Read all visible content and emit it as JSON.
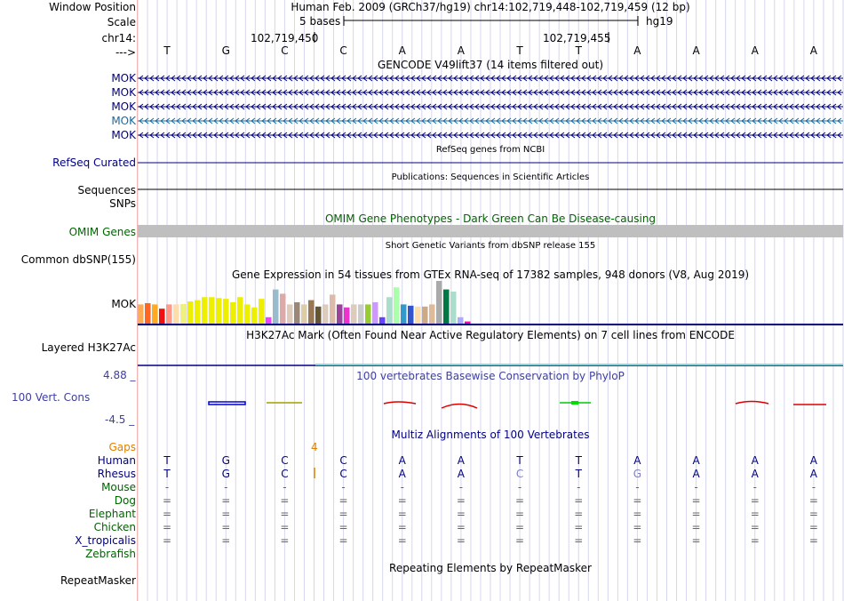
{
  "colors": {
    "navy": "#000080",
    "blue": "#000099",
    "teal": "#19699e",
    "green": "#006400",
    "orange": "#e08000",
    "purple": "#3f3f9f",
    "gray": "#bfbfbf",
    "grid": "#d6d6ee"
  },
  "ruler": {
    "window_position_label": "Window Position",
    "window_position_text": "Human Feb. 2009 (GRCh37/hg19)    chr14:102,719,448-102,719,459 (12 bp)",
    "scale_label": "Scale",
    "scale_text": "5 bases",
    "assembly": "hg19",
    "chrom_label": "chr14:",
    "tick_left": "102,719,450",
    "tick_right": "102,719,455",
    "strand_label": "--->",
    "bases": [
      "T",
      "G",
      "C",
      "C",
      "A",
      "A",
      "T",
      "T",
      "A",
      "A",
      "A",
      "A"
    ]
  },
  "gencode": {
    "title": "GENCODE V49lift37 (14 items filtered out)",
    "items": [
      {
        "name": "MOK",
        "color": "#000080"
      },
      {
        "name": "MOK",
        "color": "#000080"
      },
      {
        "name": "MOK",
        "color": "#000080"
      },
      {
        "name": "MOK",
        "color": "#19699e"
      },
      {
        "name": "MOK",
        "color": "#000080"
      }
    ]
  },
  "refseq": {
    "title": "RefSeq genes from NCBI",
    "label": "RefSeq Curated"
  },
  "publications": {
    "title": "Publications: Sequences in Scientific Articles",
    "label_sequences": "Sequences",
    "label_snps": "SNPs"
  },
  "omim": {
    "title": "OMIM Gene Phenotypes - Dark Green Can Be Disease-causing",
    "label": "OMIM Genes"
  },
  "dbsnp": {
    "title": "Short Genetic Variants from dbSNP release 155",
    "label": "Common dbSNP(155)"
  },
  "gtex": {
    "title": "Gene Expression in 54 tissues from GTEx RNA-seq of 17382 samples, 948 donors (V8, Aug 2019)",
    "label": "MOK",
    "bars": [
      {
        "v": 0.45,
        "c": "#ffaa55"
      },
      {
        "v": 0.48,
        "c": "#ff6622"
      },
      {
        "v": 0.45,
        "c": "#ffaa22"
      },
      {
        "v": 0.35,
        "c": "#ee1111"
      },
      {
        "v": 0.45,
        "c": "#ff9988"
      },
      {
        "v": 0.45,
        "c": "#ffddaa"
      },
      {
        "v": 0.46,
        "c": "#f0f080"
      },
      {
        "v": 0.52,
        "c": "#eeee00"
      },
      {
        "v": 0.55,
        "c": "#eeee00"
      },
      {
        "v": 0.62,
        "c": "#eeee00"
      },
      {
        "v": 0.62,
        "c": "#eeee00"
      },
      {
        "v": 0.6,
        "c": "#eeee00"
      },
      {
        "v": 0.58,
        "c": "#eeee00"
      },
      {
        "v": 0.5,
        "c": "#eeee00"
      },
      {
        "v": 0.62,
        "c": "#eeee00"
      },
      {
        "v": 0.45,
        "c": "#eeee00"
      },
      {
        "v": 0.38,
        "c": "#eeee00"
      },
      {
        "v": 0.58,
        "c": "#eeee00"
      },
      {
        "v": 0.15,
        "c": "#ee44ff"
      },
      {
        "v": 0.8,
        "c": "#99bbcc"
      },
      {
        "v": 0.7,
        "c": "#ddaaaa"
      },
      {
        "v": 0.45,
        "c": "#ddccbb"
      },
      {
        "v": 0.5,
        "c": "#998877"
      },
      {
        "v": 0.45,
        "c": "#ddccaa"
      },
      {
        "v": 0.55,
        "c": "#997755"
      },
      {
        "v": 0.4,
        "c": "#665533"
      },
      {
        "v": 0.45,
        "c": "#ddccbb"
      },
      {
        "v": 0.68,
        "c": "#ddbbaa"
      },
      {
        "v": 0.45,
        "c": "#994499"
      },
      {
        "v": 0.38,
        "c": "#ee33cc"
      },
      {
        "v": 0.45,
        "c": "#ddccbb"
      },
      {
        "v": 0.45,
        "c": "#cccccc"
      },
      {
        "v": 0.45,
        "c": "#99cc33"
      },
      {
        "v": 0.5,
        "c": "#cc99ff"
      },
      {
        "v": 0.15,
        "c": "#6644ff"
      },
      {
        "v": 0.62,
        "c": "#aaddcc"
      },
      {
        "v": 0.85,
        "c": "#aaffaa"
      },
      {
        "v": 0.45,
        "c": "#3399cc"
      },
      {
        "v": 0.42,
        "c": "#3355cc"
      },
      {
        "v": 0.4,
        "c": "#ffddaa"
      },
      {
        "v": 0.4,
        "c": "#ccaa88"
      },
      {
        "v": 0.45,
        "c": "#ddbb99"
      },
      {
        "v": 1.0,
        "c": "#aaaaaa"
      },
      {
        "v": 0.8,
        "c": "#007744"
      },
      {
        "v": 0.75,
        "c": "#aaddcc"
      },
      {
        "v": 0.15,
        "c": "#aaaaff"
      },
      {
        "v": 0.05,
        "c": "#ff00aa"
      }
    ]
  },
  "h3k27ac": {
    "title": "H3K27Ac Mark (Often Found Near Active Regulatory Elements) on 7 cell lines from ENCODE",
    "label": "Layered H3K27Ac"
  },
  "phylop": {
    "title": "100 vertebrates Basewise Conservation by PhyloP",
    "label": "100 Vert. Cons",
    "max": "4.88 _",
    "min": "-4.5 _"
  },
  "multiz": {
    "title": "Multiz Alignments of 100 Vertebrates",
    "gaps_label": "Gaps",
    "gap_number": "4",
    "species": [
      {
        "name": "Human",
        "color": "#000080",
        "cells": [
          "T",
          "G",
          "C",
          "C",
          "A",
          "A",
          "T",
          "T",
          "A",
          "A",
          "A",
          "A"
        ]
      },
      {
        "name": "Rhesus",
        "color": "#000080",
        "cells": [
          "T",
          "G",
          "C",
          "C",
          "A",
          "A",
          "C",
          "T",
          "G",
          "A",
          "A",
          "A"
        ]
      },
      {
        "name": "Mouse",
        "color": "#006400",
        "cells": [
          "-",
          "-",
          "-",
          "-",
          "-",
          "-",
          "-",
          "-",
          "-",
          "-",
          "-",
          "-"
        ]
      },
      {
        "name": "Dog",
        "color": "#006400",
        "cells": [
          "=",
          "=",
          "=",
          "=",
          "=",
          "=",
          "=",
          "=",
          "=",
          "=",
          "=",
          "="
        ]
      },
      {
        "name": "Elephant",
        "color": "#006400",
        "cells": [
          "=",
          "=",
          "=",
          "=",
          "=",
          "=",
          "=",
          "=",
          "=",
          "=",
          "=",
          "="
        ]
      },
      {
        "name": "Chicken",
        "color": "#006400",
        "cells": [
          "=",
          "=",
          "=",
          "=",
          "=",
          "=",
          "=",
          "=",
          "=",
          "=",
          "=",
          "="
        ]
      },
      {
        "name": "X_tropicalis",
        "color": "#000080",
        "cells": [
          "=",
          "=",
          "=",
          "=",
          "=",
          "=",
          "=",
          "=",
          "=",
          "=",
          "=",
          "="
        ]
      },
      {
        "name": "Zebrafish",
        "color": "#006400",
        "cells": [
          "",
          "",
          "",
          "",
          "",
          "",
          "",
          "",
          "",
          "",
          "",
          ""
        ]
      }
    ]
  },
  "repeatmasker": {
    "title": "Repeating Elements by RepeatMasker",
    "label": "RepeatMasker"
  }
}
